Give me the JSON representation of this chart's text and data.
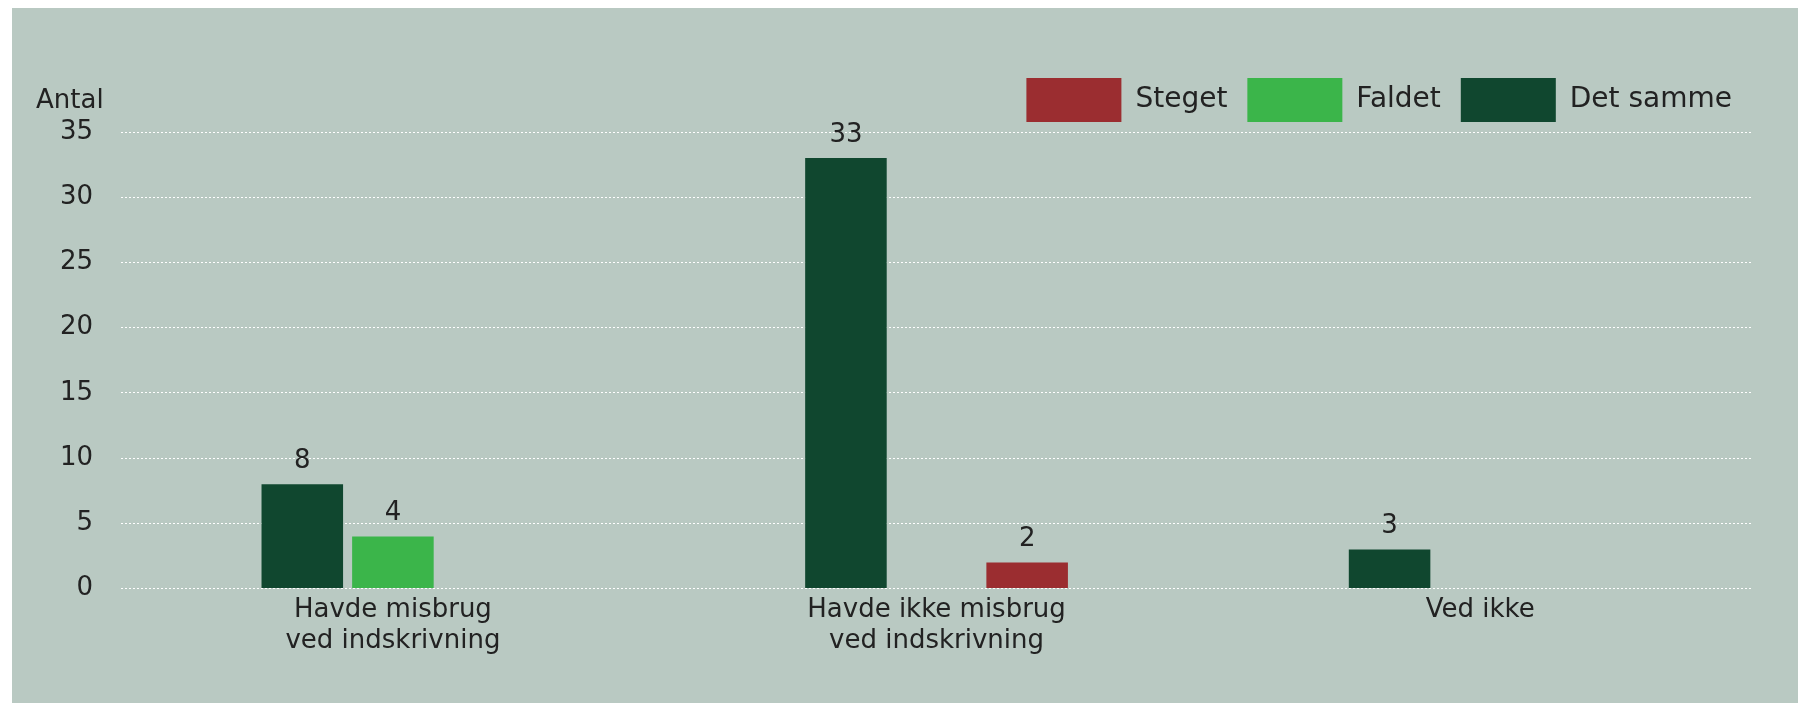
{
  "chart_data": {
    "type": "bar",
    "ylabel": "Antal",
    "categories": [
      "Havde misbrug ved indskrivning",
      "Havde ikke misbrug ved indskrivning",
      "Ved ikke"
    ],
    "series": [
      {
        "name": "Det samme",
        "color": "#10472f",
        "values": [
          8,
          33,
          3
        ]
      },
      {
        "name": "Faldet",
        "color": "#3bb54a",
        "values": [
          4,
          null,
          null
        ]
      },
      {
        "name": "Steget",
        "color": "#9b2d30",
        "values": [
          null,
          2,
          null
        ]
      }
    ],
    "ylim": [
      0,
      35
    ],
    "yticks": [
      0,
      5,
      10,
      15,
      20,
      25,
      30,
      35
    ],
    "grid": "y",
    "legend": "top right",
    "data_labels": true
  }
}
